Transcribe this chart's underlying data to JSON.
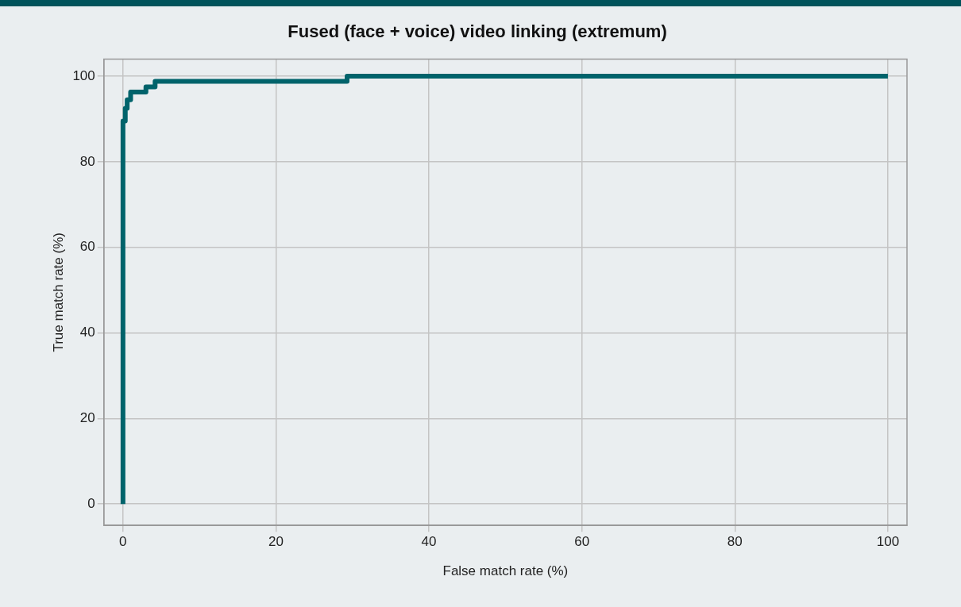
{
  "chart_data": {
    "type": "step",
    "title": "Fused (face + voice) video linking (extremum)",
    "xlabel": "False match rate (%)",
    "ylabel": "True match rate (%)",
    "series": [
      {
        "color": "#00636b",
        "x": [
          0,
          0,
          0.3,
          0.55,
          1,
          3,
          4.2,
          29.3,
          100
        ],
        "values": [
          0,
          89.5,
          92.5,
          94.5,
          96.3,
          97.5,
          98.8,
          100,
          100
        ]
      }
    ],
    "xlim": [
      -2.5,
      102.5
    ],
    "ylim": [
      -5,
      104
    ],
    "xticks": [
      0,
      20,
      40,
      60,
      80,
      100
    ],
    "yticks": [
      0,
      20,
      40,
      60,
      80,
      100
    ],
    "grid": true,
    "legend": false
  }
}
